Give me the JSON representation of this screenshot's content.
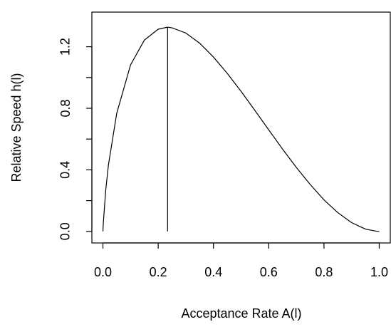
{
  "chart_data": {
    "type": "line",
    "x_label": "Acceptance Rate A(l)",
    "y_label": "Relative Speed h(l)",
    "x": [
      0,
      0.001,
      0.01,
      0.02,
      0.05,
      0.1,
      0.15,
      0.2,
      0.234,
      0.25,
      0.3,
      0.35,
      0.4,
      0.45,
      0.5,
      0.55,
      0.6,
      0.65,
      0.7,
      0.75,
      0.8,
      0.85,
      0.9,
      0.95,
      0.99,
      1
    ],
    "series": [
      {
        "color": "#000000",
        "values": [
          0,
          0.043,
          0.265,
          0.433,
          0.768,
          1.082,
          1.243,
          1.314,
          1.327,
          1.323,
          1.289,
          1.223,
          1.133,
          1.027,
          0.91,
          0.786,
          0.66,
          0.535,
          0.416,
          0.305,
          0.205,
          0.122,
          0.057,
          0.015,
          0.001,
          0
        ]
      }
    ],
    "reference_line": {
      "x": 0.234,
      "y": 1.327,
      "color": "#000000"
    },
    "xlim": [
      -0.04,
      1.04
    ],
    "ylim": [
      -0.075,
      1.425
    ],
    "xticks": [
      {
        "value": 0,
        "label": "0.0"
      },
      0.2,
      0.4,
      0.6,
      0.8,
      {
        "value": 1,
        "label": "1.0"
      }
    ],
    "yticks": [
      {
        "value": 0,
        "label": "0.0"
      },
      0.4,
      0.8,
      1.2
    ],
    "yminor_ticks": [
      0.2,
      0.6,
      1
    ]
  }
}
